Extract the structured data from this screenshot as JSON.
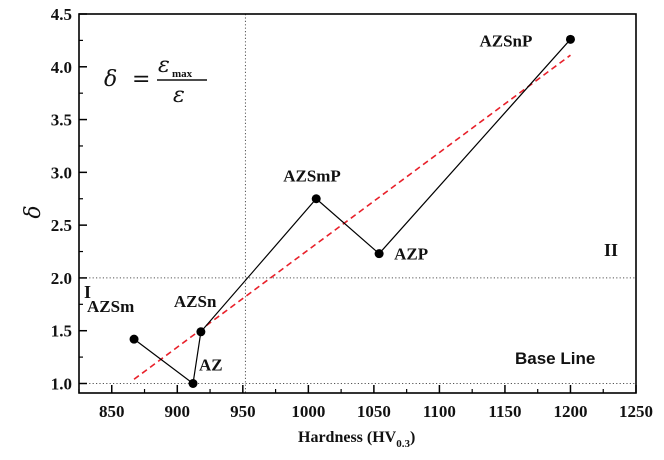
{
  "chart_data": {
    "type": "scatter",
    "title": "",
    "xlabel": "Hardness (HV",
    "xlabel_sub": "0.3",
    "xlabel_end": ")",
    "ylabel": "δ",
    "xlim": [
      825,
      1250
    ],
    "ylim": [
      0.91,
      4.5
    ],
    "x_ticks": [
      850,
      900,
      950,
      1000,
      1050,
      1100,
      1150,
      1200,
      1250
    ],
    "x_tick_labels": [
      "850",
      "900",
      "950",
      "1000",
      "1050",
      "1100",
      "1150",
      "1200",
      "1250"
    ],
    "y_ticks": [
      1.0,
      1.5,
      2.0,
      2.5,
      3.0,
      3.5,
      4.0,
      4.5
    ],
    "y_tick_labels": [
      "1.0",
      "1.5",
      "2.0",
      "2.5",
      "3.0",
      "3.5",
      "4.0",
      "4.5"
    ],
    "grid": false,
    "points": [
      {
        "label": "AZSm",
        "x": 867,
        "y": 1.42
      },
      {
        "label": "AZ",
        "x": 912,
        "y": 1.0
      },
      {
        "label": "AZSn",
        "x": 918,
        "y": 1.49
      },
      {
        "label": "AZSmP",
        "x": 1006,
        "y": 2.75
      },
      {
        "label": "AZP",
        "x": 1054,
        "y": 2.23
      },
      {
        "label": "AZSnP",
        "x": 1200,
        "y": 4.26
      }
    ],
    "connection_order": [
      "AZSm",
      "AZ",
      "AZSn",
      "AZSmP",
      "AZP",
      "AZSnP"
    ],
    "fit_line": {
      "x": [
        867,
        1200
      ],
      "y": [
        1.04,
        4.11
      ],
      "color": "#e8202a",
      "style": "dashed"
    },
    "reference_lines": {
      "vertical_x": 952,
      "horizontal_y": 2.0,
      "base_line_y": 1.0
    },
    "annotations": {
      "region_1": "I",
      "region_2": "II",
      "base_line": "Base Line",
      "formula_lhs": "δ",
      "formula_eq": "=",
      "formula_num": "ε",
      "formula_num_sub": "max",
      "formula_den": "ε"
    },
    "colors": {
      "series": "#000000",
      "fit": "#e8202a",
      "reference": "#555555"
    }
  }
}
